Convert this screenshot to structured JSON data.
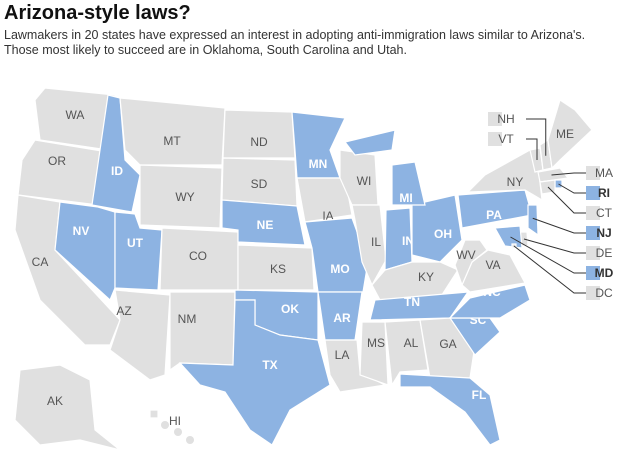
{
  "header": {
    "title": "Arizona-style laws?",
    "subtitle": [
      "Lawmakers in 20 states have expressed an interest in adopting anti-immigration laws similar to Arizona's.",
      "Those most likely to succeed are in Oklahoma, South Carolina and Utah."
    ]
  },
  "map": {
    "highlight_color": "#8db3e2",
    "base_color": "#e0e0e0",
    "states": [
      {
        "label": "WA",
        "highlighted": false
      },
      {
        "label": "OR",
        "highlighted": false
      },
      {
        "label": "CA",
        "highlighted": false
      },
      {
        "label": "ID",
        "highlighted": true
      },
      {
        "label": "NV",
        "highlighted": true
      },
      {
        "label": "UT",
        "highlighted": true
      },
      {
        "label": "AZ",
        "highlighted": false
      },
      {
        "label": "MT",
        "highlighted": false
      },
      {
        "label": "WY",
        "highlighted": false
      },
      {
        "label": "CO",
        "highlighted": false
      },
      {
        "label": "NM",
        "highlighted": false
      },
      {
        "label": "ND",
        "highlighted": false
      },
      {
        "label": "SD",
        "highlighted": false
      },
      {
        "label": "NE",
        "highlighted": true
      },
      {
        "label": "KS",
        "highlighted": false
      },
      {
        "label": "OK",
        "highlighted": true
      },
      {
        "label": "TX",
        "highlighted": true
      },
      {
        "label": "MN",
        "highlighted": true
      },
      {
        "label": "IA",
        "highlighted": false
      },
      {
        "label": "MO",
        "highlighted": true
      },
      {
        "label": "AR",
        "highlighted": true
      },
      {
        "label": "LA",
        "highlighted": false
      },
      {
        "label": "WI",
        "highlighted": false
      },
      {
        "label": "IL",
        "highlighted": false
      },
      {
        "label": "MI",
        "highlighted": true
      },
      {
        "label": "IN",
        "highlighted": true
      },
      {
        "label": "OH",
        "highlighted": true
      },
      {
        "label": "KY",
        "highlighted": false
      },
      {
        "label": "TN",
        "highlighted": true
      },
      {
        "label": "MS",
        "highlighted": false
      },
      {
        "label": "AL",
        "highlighted": false
      },
      {
        "label": "GA",
        "highlighted": false
      },
      {
        "label": "FL",
        "highlighted": true
      },
      {
        "label": "SC",
        "highlighted": true
      },
      {
        "label": "NC",
        "highlighted": true
      },
      {
        "label": "VA",
        "highlighted": false
      },
      {
        "label": "WV",
        "highlighted": false
      },
      {
        "label": "PA",
        "highlighted": true
      },
      {
        "label": "NY",
        "highlighted": false
      },
      {
        "label": "VT",
        "highlighted": false
      },
      {
        "label": "NH",
        "highlighted": false
      },
      {
        "label": "ME",
        "highlighted": false
      },
      {
        "label": "MA",
        "highlighted": false
      },
      {
        "label": "RI",
        "highlighted": true
      },
      {
        "label": "CT",
        "highlighted": false
      },
      {
        "label": "NJ",
        "highlighted": true
      },
      {
        "label": "DE",
        "highlighted": false
      },
      {
        "label": "MD",
        "highlighted": true
      },
      {
        "label": "DC",
        "highlighted": false
      },
      {
        "label": "AK",
        "highlighted": false
      },
      {
        "label": "HI",
        "highlighted": false
      }
    ]
  }
}
